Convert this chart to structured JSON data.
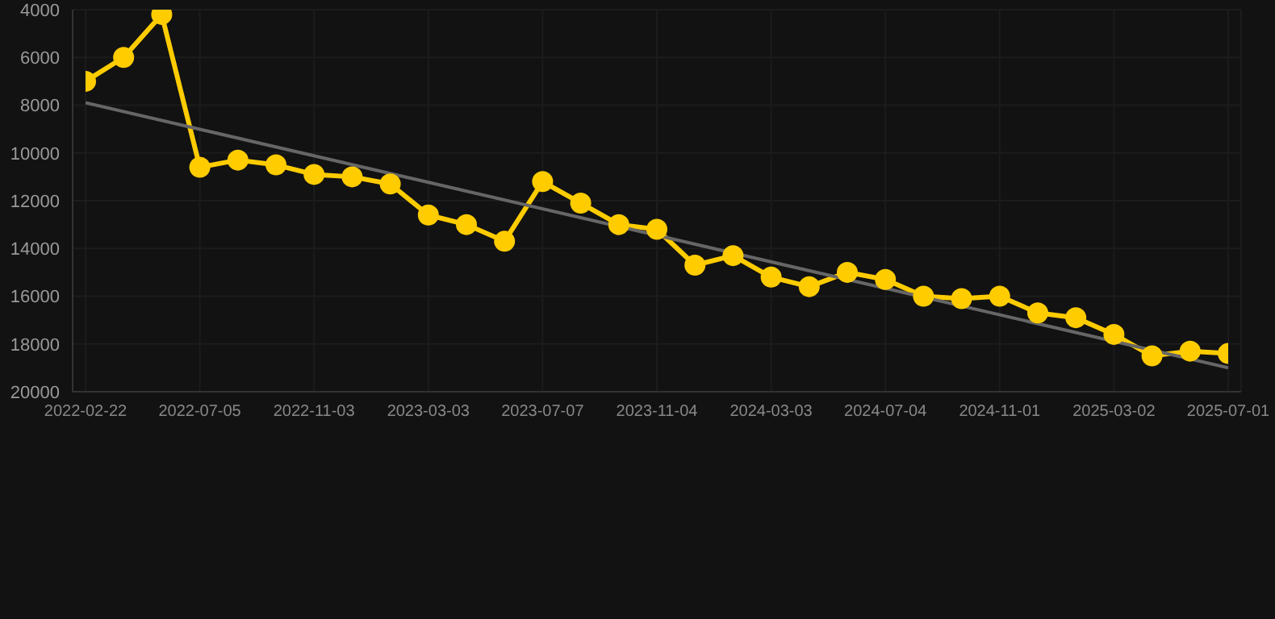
{
  "chart_data": {
    "type": "line",
    "categories": [
      "2022-02-22",
      null,
      null,
      "2022-07-05",
      null,
      null,
      "2022-11-03",
      null,
      null,
      "2023-03-03",
      null,
      null,
      "2023-07-07",
      null,
      null,
      "2023-11-04",
      null,
      null,
      "2024-03-03",
      null,
      null,
      "2024-07-04",
      null,
      null,
      "2024-11-01",
      null,
      null,
      "2025-03-02",
      null,
      null,
      "2025-07-01"
    ],
    "series": [
      {
        "color": "#ffcc00",
        "marker": "circle",
        "values": [
          7000,
          6000,
          4200,
          10600,
          10300,
          10500,
          10900,
          11000,
          11300,
          12600,
          13000,
          13700,
          11200,
          12100,
          13000,
          13200,
          14700,
          14300,
          15200,
          15600,
          15000,
          15300,
          16000,
          16100,
          16000,
          16700,
          16900,
          17600,
          18500,
          18300,
          18400
        ]
      },
      {
        "type": "line",
        "color": "#666666",
        "marker": "none",
        "values": [
          7900,
          null,
          null,
          null,
          null,
          null,
          null,
          null,
          null,
          null,
          null,
          null,
          null,
          null,
          null,
          null,
          null,
          null,
          null,
          null,
          null,
          null,
          null,
          null,
          null,
          null,
          null,
          null,
          null,
          null,
          19000
        ]
      }
    ],
    "ylim": [
      20000,
      4000
    ],
    "yticks": [
      4000,
      6000,
      8000,
      10000,
      12000,
      14000,
      16000,
      18000,
      20000
    ],
    "grid": true,
    "legend": false
  }
}
